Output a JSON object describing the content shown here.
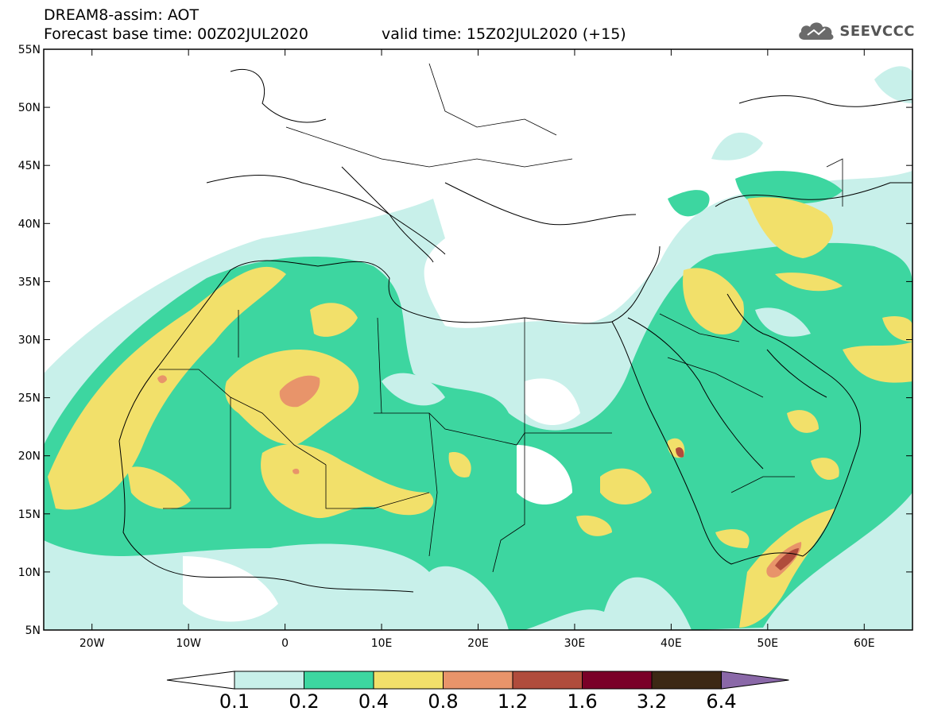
{
  "title": {
    "line1": "DREAM8-assim: AOT",
    "line2": "Forecast base time: 00Z02JUL2020",
    "valid": "valid time: 15Z02JUL2020 (+15)"
  },
  "logo": {
    "text": "SEEVCCC",
    "icon": "cloud-icon"
  },
  "map": {
    "lon_range": [
      -25,
      65
    ],
    "lat_range": [
      5,
      55
    ],
    "lon_ticks": [
      {
        "value": -20,
        "label": "20W"
      },
      {
        "value": -10,
        "label": "10W"
      },
      {
        "value": 0,
        "label": "0"
      },
      {
        "value": 10,
        "label": "10E"
      },
      {
        "value": 20,
        "label": "20E"
      },
      {
        "value": 30,
        "label": "30E"
      },
      {
        "value": 40,
        "label": "40E"
      },
      {
        "value": 50,
        "label": "50E"
      },
      {
        "value": 60,
        "label": "60E"
      }
    ],
    "lat_ticks": [
      {
        "value": 5,
        "label": "5N"
      },
      {
        "value": 10,
        "label": "10N"
      },
      {
        "value": 15,
        "label": "15N"
      },
      {
        "value": 20,
        "label": "20N"
      },
      {
        "value": 25,
        "label": "25N"
      },
      {
        "value": 30,
        "label": "30N"
      },
      {
        "value": 35,
        "label": "35N"
      },
      {
        "value": 40,
        "label": "40N"
      },
      {
        "value": 45,
        "label": "45N"
      },
      {
        "value": 50,
        "label": "50N"
      },
      {
        "value": 55,
        "label": "55N"
      }
    ]
  },
  "colorbar": {
    "labels": [
      "0.1",
      "0.2",
      "0.4",
      "0.8",
      "1.2",
      "1.6",
      "3.2",
      "6.4"
    ],
    "colors": [
      "#c8f0ea",
      "#3dd6a0",
      "#f2e06a",
      "#e8946a",
      "#b04c3c",
      "#7a0028",
      "#3c2814",
      "#8a68a8"
    ]
  }
}
